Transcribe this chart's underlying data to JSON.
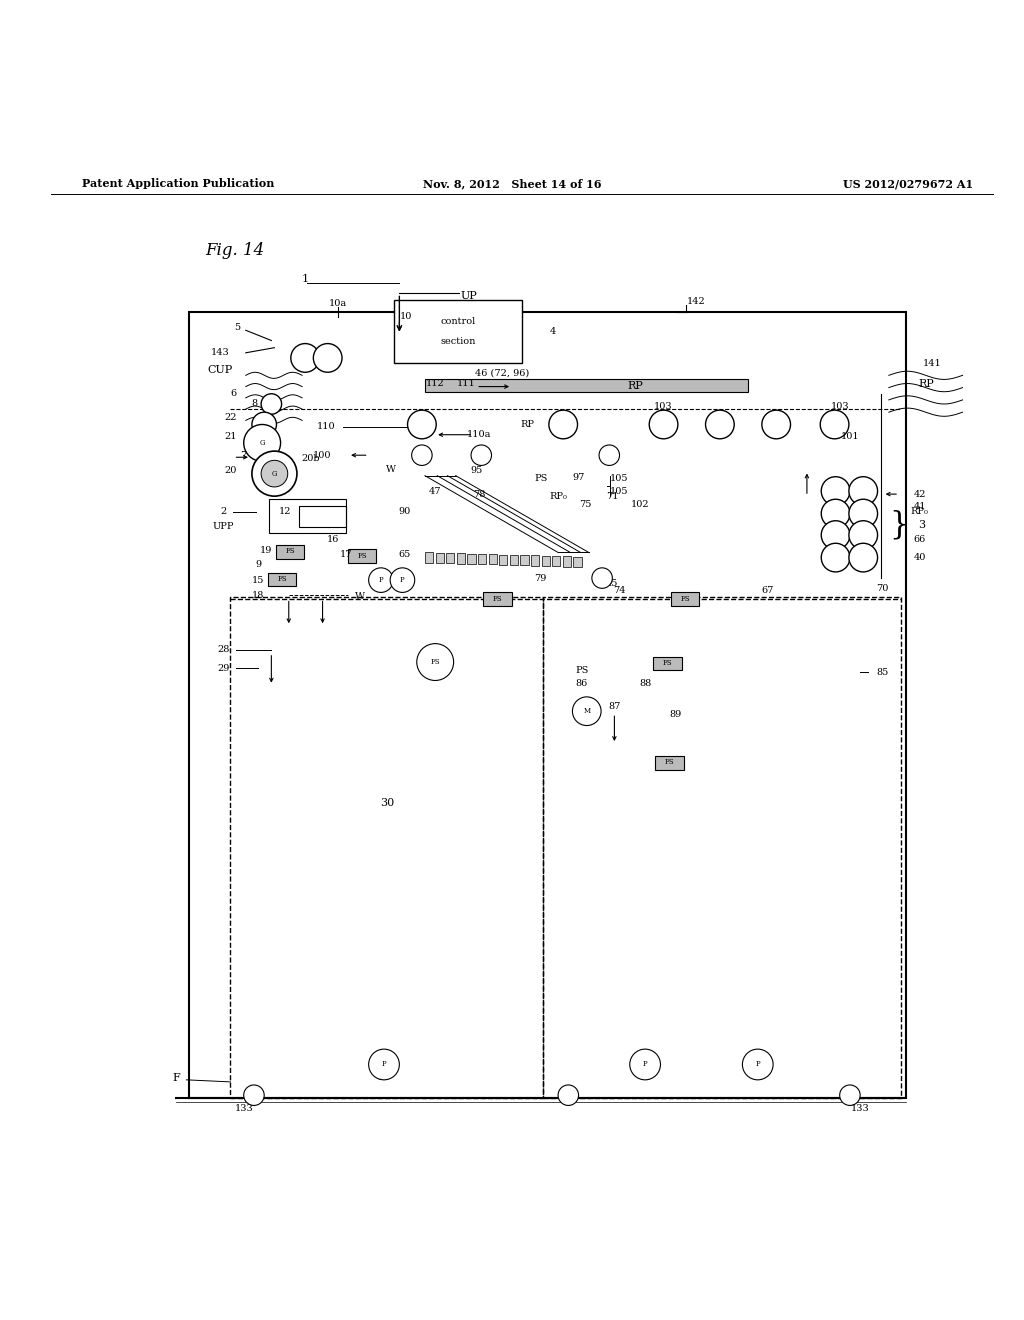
{
  "bg_color": "#ffffff",
  "header_left": "Patent Application Publication",
  "header_mid": "Nov. 8, 2012   Sheet 14 of 16",
  "header_right": "US 2012/0279672 A1",
  "fig_label": "Fig. 14"
}
